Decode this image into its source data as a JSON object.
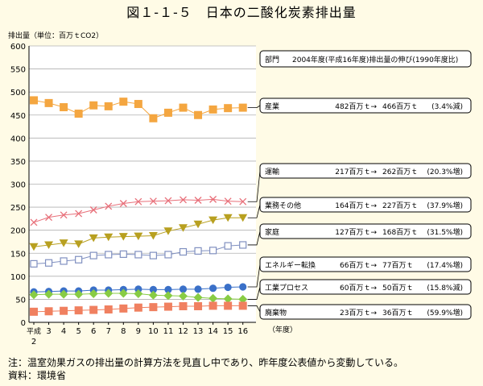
{
  "figure_title": "図１-１-５　日本の二酸化炭素排出量",
  "note": "注：温室効果ガスの排出量の計算方法を見直し中であり、昨年度公表値から変動している。",
  "source": "資料：環境省",
  "chart_data": {
    "type": "line",
    "ylabel": "排出量（単位：百万ｔCO2）",
    "xlabel": "（年度）",
    "ylim": [
      0,
      600
    ],
    "yticks": [
      0,
      50,
      100,
      150,
      200,
      250,
      300,
      350,
      400,
      450,
      500,
      550,
      600
    ],
    "x": [
      "平成2",
      "3",
      "4",
      "5",
      "6",
      "7",
      "8",
      "9",
      "10",
      "11",
      "12",
      "13",
      "14",
      "15",
      "16"
    ],
    "x_tick_main": [
      "平成",
      "3",
      "4",
      "5",
      "6",
      "7",
      "8",
      "9",
      "10",
      "11",
      "12",
      "13",
      "14",
      "15",
      "16"
    ],
    "x_tick_sub": "2",
    "grid": true,
    "legend_header": {
      "sector": "部門",
      "desc": "2004年度(平成16年度)排出量の伸び(1990年度比)"
    },
    "series": [
      {
        "name": "産業",
        "color": "#f4a640",
        "marker": "square-filled",
        "values": [
          482,
          476,
          467,
          453,
          471,
          469,
          479,
          474,
          443,
          455,
          466,
          450,
          462,
          465,
          466
        ],
        "from": "482百万ｔ→",
        "to": "466百万ｔ",
        "change": "(3.4%減)"
      },
      {
        "name": "運輸",
        "color": "#e8707a",
        "marker": "cross",
        "values": [
          217,
          228,
          233,
          236,
          244,
          252,
          258,
          262,
          263,
          264,
          266,
          265,
          267,
          263,
          262
        ],
        "from": "217百万ｔ→",
        "to": "262百万ｔ",
        "change": "(20.3%増)"
      },
      {
        "name": "業務その他",
        "color": "#b8a020",
        "marker": "triangle-down",
        "values": [
          164,
          168,
          172,
          170,
          183,
          185,
          186,
          187,
          188,
          198,
          205,
          213,
          222,
          227,
          227
        ],
        "from": "164百万ｔ→",
        "to": "227百万ｔ",
        "change": "(37.9%増)"
      },
      {
        "name": "家庭",
        "color": "#8090c0",
        "marker": "square-open",
        "values": [
          127,
          129,
          133,
          136,
          145,
          147,
          148,
          147,
          145,
          147,
          153,
          155,
          156,
          166,
          168
        ],
        "from": "127百万ｔ→",
        "to": "168百万ｔ",
        "change": "(31.5%増)"
      },
      {
        "name": "エネルギー転換",
        "color": "#3a70c8",
        "marker": "circle",
        "values": [
          66,
          67,
          68,
          68,
          70,
          70,
          71,
          72,
          71,
          71,
          72,
          72,
          74,
          76,
          77
        ],
        "from": "66百万ｔ→",
        "to": "77百万ｔ",
        "change": "(17.4%増)"
      },
      {
        "name": "工業プロセス",
        "color": "#88cc44",
        "marker": "diamond",
        "values": [
          60,
          61,
          61,
          61,
          62,
          63,
          63,
          62,
          59,
          58,
          57,
          54,
          52,
          51,
          50
        ],
        "from": "60百万ｔ→",
        "to": "50百万ｔ",
        "change": "(15.8%減)"
      },
      {
        "name": "廃棄物",
        "color": "#f08060",
        "marker": "square-filled",
        "values": [
          23,
          24,
          25,
          26,
          27,
          28,
          30,
          32,
          33,
          34,
          35,
          35,
          36,
          36,
          36
        ],
        "from": "23百万ｔ→",
        "to": "36百万ｔ",
        "change": "(59.9%増)"
      }
    ]
  }
}
